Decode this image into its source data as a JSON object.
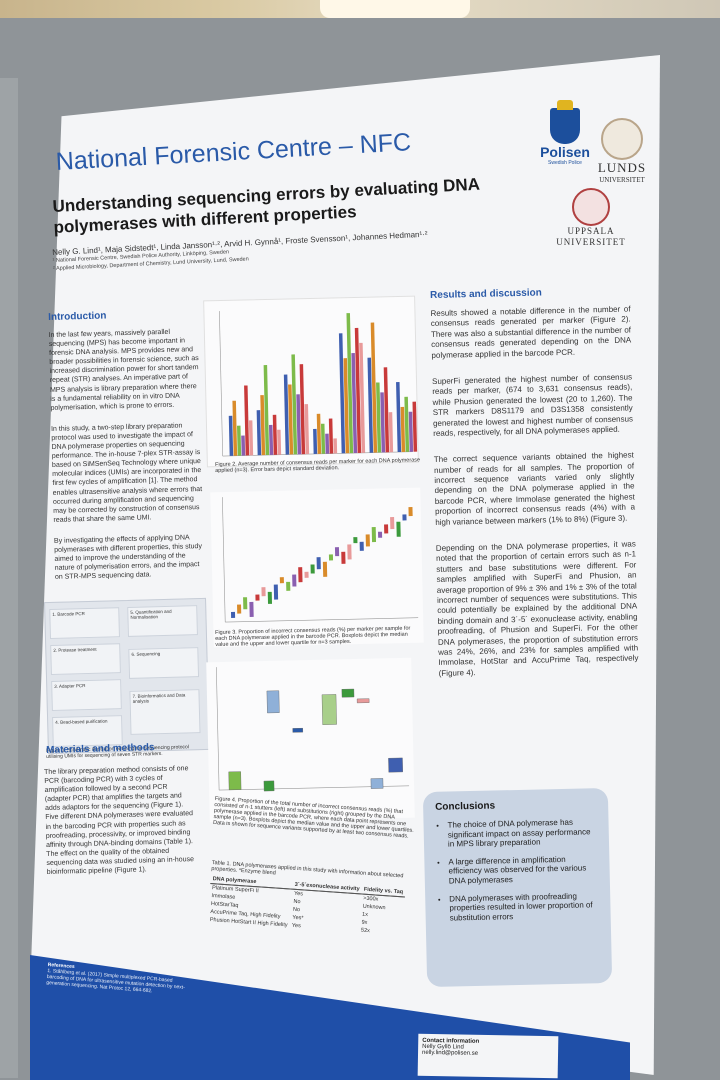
{
  "poster": {
    "org_title": "National Forensic Centre – NFC",
    "main_title": "Understanding sequencing errors by evaluating DNA polymerases with different properties",
    "authors": "Nelly G. Lind¹, Maja Sidstedt¹, Linda Jansson¹·², Arvid H. Gynnå¹, Froste Svensson¹, Johannes Hedman¹·²",
    "affiliation_1": "¹ National Forensic Centre, Swedish Police Authority, Linköping, Sweden",
    "affiliation_2": "² Applied Microbiology, Department of Chemistry, Lund University, Lund, Sweden",
    "logos": {
      "polisen": "Polisen",
      "polisen_sub": "Swedish Police",
      "lund": "LUNDS",
      "lund_sub": "UNIVERSITET",
      "uppsala_1": "UPPSALA",
      "uppsala_2": "UNIVERSITET"
    },
    "intro": {
      "heading": "Introduction",
      "p1": "In the last few years, massively parallel sequencing (MPS) has become important in forensic DNA analysis. MPS provides new and broader possibilities in forensic science, such as increased discrimination power for short tandem repeat (STR) analyses. An imperative part of MPS analysis is library preparation where there is a fundamental reliability on in vitro DNA polymerisation, which is prone to errors.",
      "p2": "In this study, a two-step library preparation protocol was used to investigate the impact of DNA polymerase properties on sequencing performance. The in-house 7-plex STR-assay is based on SiMSenSeq Technology where unique molecular indices (UMIs) are incorporated in the first few cycles of amplification [1]. The method enables ultrasensitive analysis where errors that occurred during amplification and sequencing may be corrected by construction of consensus reads that share the same UMI.",
      "p3": "By investigating the effects of applying DNA polymerases with different properties, this study aimed to improve the understanding of the nature of polymerisation errors, and the impact on STR-MPS sequencing data."
    },
    "fig1": {
      "box1": "1. Barcode PCR",
      "box2": "2. Protease treatment",
      "box3": "3. Adapter PCR",
      "box4": "4. Bead-based purification",
      "box5": "5. Quantification and Normalisation",
      "box6": "6. Sequencing",
      "box7": "7. Bioinformatics and Data analysis",
      "caption": "Figure 1. Schematic illustration outlining the sequencing protocol utilising UMIs for sequencing of seven STR markers."
    },
    "methods": {
      "heading": "Materials and methods",
      "text": "The library preparation method consists of one PCR (barcoding PCR) with 3 cycles of amplification followed by a second PCR (adapter PCR) that amplifies the targets and adds adaptors for the sequencing (Figure 1). Five different DNA polymerases were evaluated in the barcoding PCR with properties such as proofreading, processivity, or improved binding affinity through DNA-binding domains (Table 1). The effect on the quality of the obtained sequencing data was studied using an in-house bioinformatic pipeline (Figure 1)."
    },
    "fig2_caption": "Figure 2. Average number of consensus reads per marker for each DNA polymerase applied (n=3). Error bars depict standard deviation.",
    "fig3_caption": "Figure 3. Proportion of incorrect consensus reads (%) per marker per sample for each DNA polymerase applied in the barcode PCR. Boxplots depict the median value and the upper and lower quartile for n=3 samples.",
    "fig4_caption": "Figure 4. Proportion of the total number of incorrect consensus reads (%) that consisted of n-1 stutters (left) and substitutions (right) grouped by the DNA polymerase applied in the barcode PCR, where each data point represents one sample (n=3). Boxplots depict the median value and the upper and lower quartiles. Data is shown for sequence variants supported by at least two consensus reads.",
    "table1": {
      "caption": "Table 1. DNA polymerases applied in this study with information about selected properties. *Enzyme blend",
      "headers": [
        "DNA polymerase",
        "3´-5´exonuclease activity",
        "Fidelity vs. Taq"
      ],
      "rows": [
        [
          "Platinum SuperFi II",
          "Yes",
          ">300x"
        ],
        [
          "Immolase",
          "No",
          "Unknown"
        ],
        [
          "HotStarTaq",
          "No",
          "1x"
        ],
        [
          "AccuPrime Taq, High Fidelity",
          "Yes*",
          "9x"
        ],
        [
          "Phusion HotStart II High Fidelity",
          "Yes",
          "52x"
        ]
      ]
    },
    "results": {
      "heading": "Results and discussion",
      "p1": "Results showed a notable difference in the number of consensus reads generated per marker (Figure 2). There was also a substantial difference in the number of consensus reads generated depending on the DNA polymerase applied in the barcode PCR.",
      "p2": "SuperFi generated the highest number of consensus reads per marker, (674 to 3,631 consensus reads), while Phusion generated the lowest (20 to 1,260). The STR markers D8S1179 and D3S1358 consistently generated the lowest and highest number of consensus reads, respectively, for all DNA polymerases applied.",
      "p3": "The correct sequence variants obtained the highest number of reads for all samples. The proportion of incorrect sequence variants varied only slightly depending on the DNA polymerase applied in the barcode PCR, where Immolase generated the highest proportion of incorrect consensus reads (4%) with a high variance between markers (1% to 8%) (Figure 3).",
      "p4": "Depending on the DNA polymerase properties, it was noted that the proportion of certain errors such as n-1 stutters and base substitutions were different. For samples amplified with SuperFi and Phusion, an average proportion of 9% ± 3% and 1% ± 3% of the total incorrect number of sequences were substitutions. This could potentially be explained by the additional DNA binding domain and 3´-5´ exonuclease activity, enabling proofreading, of Phusion and SuperFi. For the other DNA polymerases, the proportion of substitution errors was 24%, 26%, and 23% for samples amplified with Immolase, HotStar and AccuPrime Taq, respectively (Figure 4)."
    },
    "conclusions": {
      "heading": "Conclusions",
      "items": [
        "The choice of DNA polymerase has significant impact on assay performance in MPS library preparation",
        "A large difference in amplification efficiency was observed for the various DNA polymerases",
        "DNA polymerases with proofreading properties resulted in lower proportion of substitution errors"
      ]
    },
    "references": {
      "heading": "References",
      "text": "1. Ståhlberg et al. (2017) Simple multiplexed PCR-based barcoding of DNA for ultrasensitive mutation detection by next-generation sequencing. Nat Protoc 12, 664-682."
    },
    "contact": {
      "heading": "Contact information",
      "name": "Nelly Gyllö Lind",
      "email": "nelly.lind@polisen.se"
    }
  },
  "colors": {
    "brand_blue": "#2a5aa8",
    "footer_blue": "#1f4fa8",
    "conclusion_box": "#c9d4e3"
  }
}
